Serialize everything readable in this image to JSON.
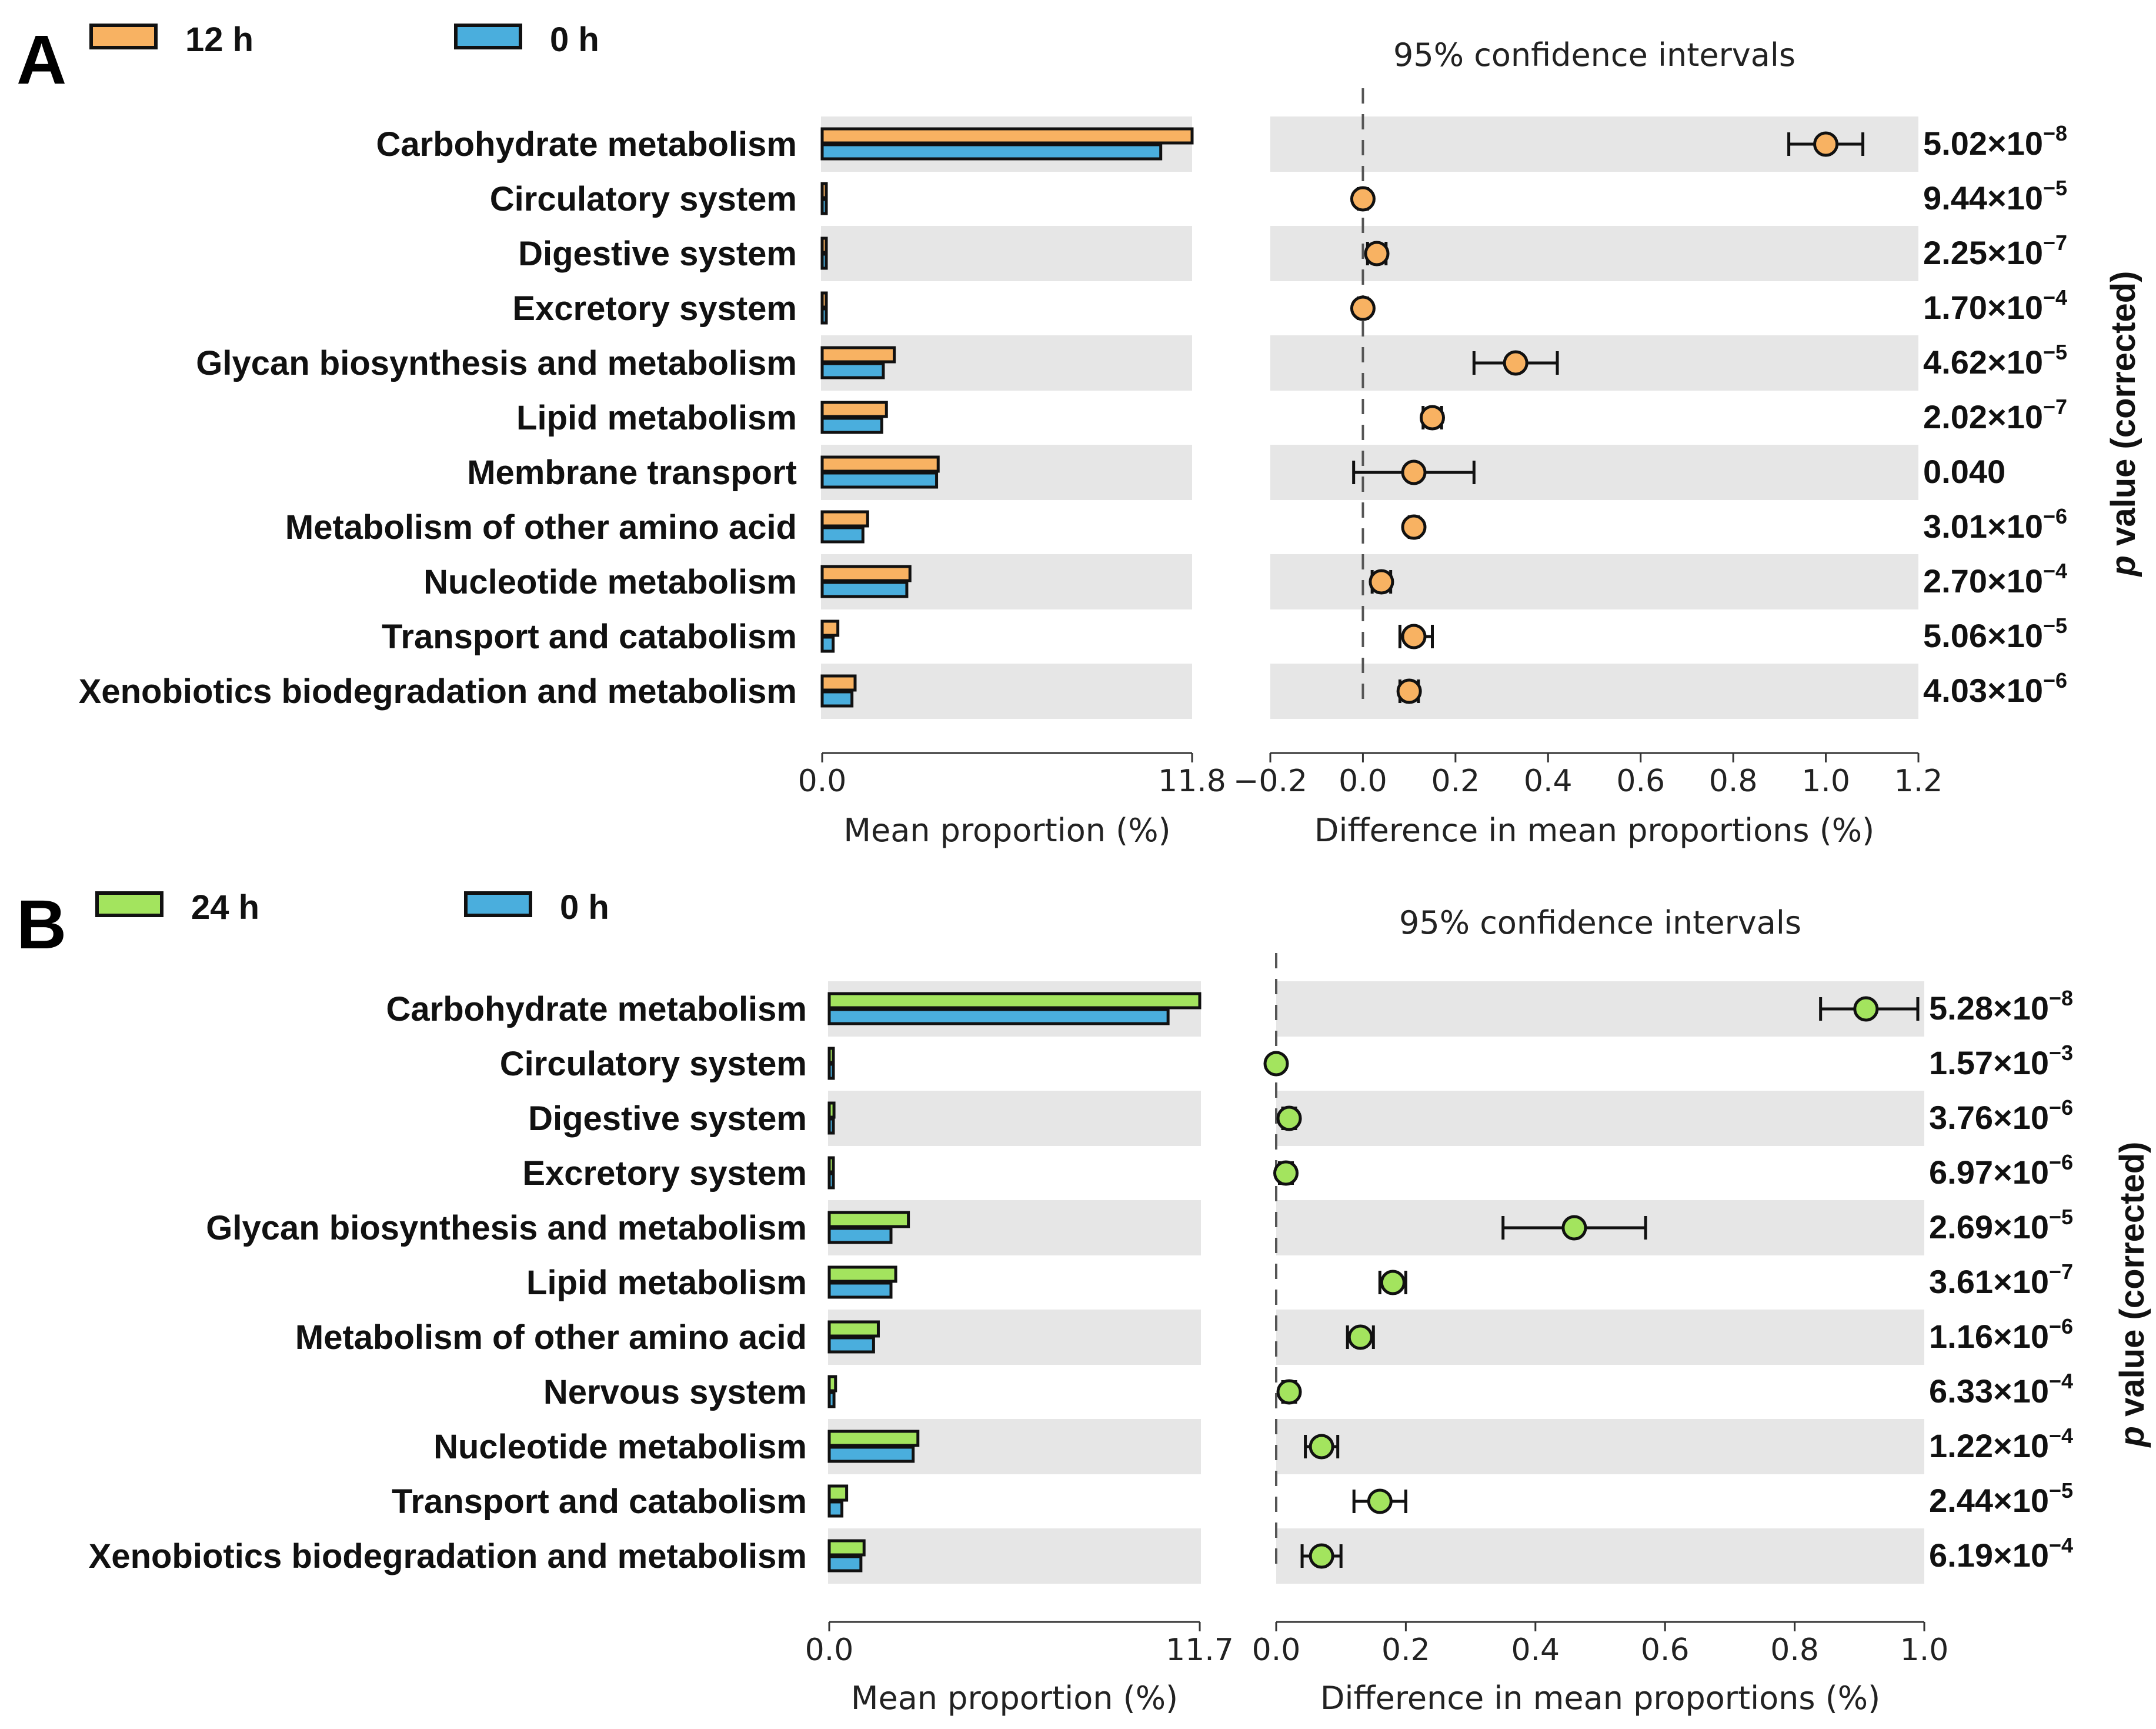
{
  "chart_data": [
    {
      "panel": "A",
      "type": "bar",
      "subtype": "extended error bar (STAMP)",
      "legend": [
        {
          "name": "12 h",
          "color": "#f8b262"
        },
        {
          "name": "0 h",
          "color": "#4aaedd"
        }
      ],
      "categories": [
        "Carbohydrate metabolism",
        "Circulatory system",
        "Digestive system",
        "Excretory system",
        "Glycan biosynthesis and metabolism",
        "Lipid metabolism",
        "Membrane transport",
        "Metabolism of other amino acid",
        "Nucleotide metabolism",
        "Transport and catabolism",
        "Xenobiotics biodegradation and metabolism"
      ],
      "series": [
        {
          "name": "12 h",
          "values": [
            11.8,
            0.05,
            0.12,
            0.05,
            2.3,
            2.05,
            3.7,
            1.45,
            2.8,
            0.5,
            1.05
          ]
        },
        {
          "name": "0 h",
          "values": [
            10.8,
            0.05,
            0.1,
            0.05,
            1.95,
            1.9,
            3.65,
            1.3,
            2.7,
            0.35,
            0.95
          ]
        }
      ],
      "bar_axis": {
        "label": "Mean proportion (%)",
        "ticks": [
          "0.0",
          "11.8"
        ],
        "range": [
          0,
          11.8
        ]
      },
      "ci_title": "95% confidence intervals",
      "ci_axis": {
        "label": "Difference in mean proportions (%)",
        "range": [
          -0.2,
          1.2
        ],
        "ticks": [
          -0.2,
          0.0,
          0.2,
          0.4,
          0.6,
          0.8,
          1.0,
          1.2
        ],
        "tick_labels": [
          "−0.2",
          "0.0",
          "0.2",
          "0.4",
          "0.6",
          "0.8",
          "1.0",
          "1.2"
        ]
      },
      "differences": [
        1.0,
        0.0,
        0.03,
        0.0,
        0.33,
        0.15,
        0.11,
        0.11,
        0.04,
        0.11,
        0.1
      ],
      "ci_low": [
        0.92,
        -0.01,
        0.01,
        -0.01,
        0.24,
        0.13,
        -0.02,
        0.1,
        0.02,
        0.08,
        0.08
      ],
      "ci_high": [
        1.08,
        0.01,
        0.05,
        0.01,
        0.42,
        0.17,
        0.24,
        0.12,
        0.06,
        0.15,
        0.12
      ],
      "marker_color": "#f8b262",
      "p_values": [
        {
          "mantissa": "5.02×10",
          "exp": "−8"
        },
        {
          "mantissa": "9.44×10",
          "exp": "−5"
        },
        {
          "mantissa": "2.25×10",
          "exp": "−7"
        },
        {
          "mantissa": "1.70×10",
          "exp": "−4"
        },
        {
          "mantissa": "4.62×10",
          "exp": "−5"
        },
        {
          "mantissa": "2.02×10",
          "exp": "−7"
        },
        {
          "mantissa": "0.040",
          "exp": ""
        },
        {
          "mantissa": "3.01×10",
          "exp": "−6"
        },
        {
          "mantissa": "2.70×10",
          "exp": "−4"
        },
        {
          "mantissa": "5.06×10",
          "exp": "−5"
        },
        {
          "mantissa": "4.03×10",
          "exp": "−6"
        }
      ],
      "p_axis_title": {
        "italic": "p",
        "rest": " value (corrected)"
      }
    },
    {
      "panel": "B",
      "type": "bar",
      "subtype": "extended error bar (STAMP)",
      "legend": [
        {
          "name": "24 h",
          "color": "#a3e45e"
        },
        {
          "name": "0 h",
          "color": "#4aaedd"
        }
      ],
      "categories": [
        "Carbohydrate metabolism",
        "Circulatory system",
        "Digestive system",
        "Excretory system",
        "Glycan biosynthesis and metabolism",
        "Lipid metabolism",
        "Metabolism of other amino acid",
        "Nervous system",
        "Nucleotide metabolism",
        "Transport and catabolism",
        "Xenobiotics biodegradation and metabolism"
      ],
      "series": [
        {
          "name": "24 h",
          "values": [
            11.7,
            0.05,
            0.15,
            0.05,
            2.5,
            2.1,
            1.55,
            0.2,
            2.8,
            0.55,
            1.1
          ]
        },
        {
          "name": "0 h",
          "values": [
            10.7,
            0.05,
            0.1,
            0.05,
            1.95,
            1.95,
            1.4,
            0.15,
            2.65,
            0.4,
            1.0
          ]
        }
      ],
      "bar_axis": {
        "label": "Mean proportion (%)",
        "ticks": [
          "0.0",
          "11.7"
        ],
        "range": [
          0,
          11.7
        ]
      },
      "ci_title": "95% confidence intervals",
      "ci_axis": {
        "label": "Difference in mean proportions (%)",
        "range": [
          0.0,
          1.0
        ],
        "ticks": [
          0.0,
          0.2,
          0.4,
          0.6,
          0.8,
          1.0
        ],
        "tick_labels": [
          "0.0",
          "0.2",
          "0.4",
          "0.6",
          "0.8",
          "1.0"
        ]
      },
      "differences": [
        0.91,
        0.0,
        0.02,
        0.015,
        0.46,
        0.18,
        0.13,
        0.02,
        0.07,
        0.16,
        0.07
      ],
      "ci_low": [
        0.84,
        -0.005,
        0.01,
        0.005,
        0.35,
        0.16,
        0.11,
        0.01,
        0.045,
        0.12,
        0.04
      ],
      "ci_high": [
        0.99,
        0.005,
        0.03,
        0.025,
        0.57,
        0.2,
        0.15,
        0.03,
        0.095,
        0.2,
        0.1
      ],
      "marker_color": "#a3e45e",
      "p_values": [
        {
          "mantissa": "5.28×10",
          "exp": "−8"
        },
        {
          "mantissa": "1.57×10",
          "exp": "−3"
        },
        {
          "mantissa": "3.76×10",
          "exp": "−6"
        },
        {
          "mantissa": "6.97×10",
          "exp": "−6"
        },
        {
          "mantissa": "2.69×10",
          "exp": "−5"
        },
        {
          "mantissa": "3.61×10",
          "exp": "−7"
        },
        {
          "mantissa": "1.16×10",
          "exp": "−6"
        },
        {
          "mantissa": "6.33×10",
          "exp": "−4"
        },
        {
          "mantissa": "1.22×10",
          "exp": "−4"
        },
        {
          "mantissa": "2.44×10",
          "exp": "−5"
        },
        {
          "mantissa": "6.19×10",
          "exp": "−4"
        }
      ],
      "p_axis_title": {
        "italic": "p",
        "rest": " value (corrected)"
      }
    }
  ]
}
